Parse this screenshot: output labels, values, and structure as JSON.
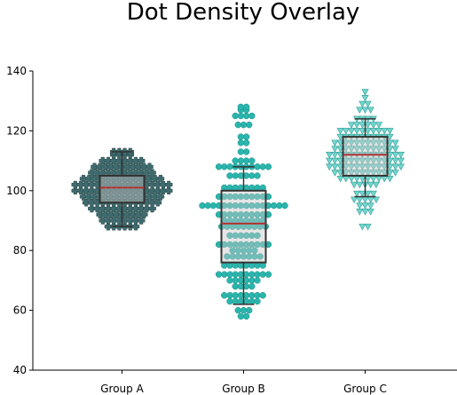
{
  "chart_data": {
    "type": "box",
    "title": "Dot Density Overlay",
    "xlabel": "",
    "ylabel": "",
    "ylim": [
      40,
      140
    ],
    "yticks": [
      40,
      60,
      80,
      100,
      120,
      140
    ],
    "categories": [
      "Group A",
      "Group B",
      "Group C"
    ],
    "grid": false,
    "legend": "none",
    "series": [
      {
        "category": "Group A",
        "marker": "plus",
        "color": "#3f6b6e",
        "box": {
          "q1": 96,
          "median": 101,
          "q3": 105,
          "whisker_low": 88,
          "whisker_high": 113
        },
        "levels": [
          {
            "y": 88,
            "n": 6
          },
          {
            "y": 90,
            "n": 8
          },
          {
            "y": 92,
            "n": 9
          },
          {
            "y": 94,
            "n": 12
          },
          {
            "y": 96,
            "n": 14
          },
          {
            "y": 98,
            "n": 15
          },
          {
            "y": 100,
            "n": 18
          },
          {
            "y": 102,
            "n": 18
          },
          {
            "y": 104,
            "n": 15
          },
          {
            "y": 106,
            "n": 12
          },
          {
            "y": 108,
            "n": 11
          },
          {
            "y": 110,
            "n": 8
          },
          {
            "y": 112,
            "n": 4
          },
          {
            "y": 113,
            "n": 4
          }
        ]
      },
      {
        "category": "Group B",
        "marker": "octagon",
        "color": "#2ab5ad",
        "box": {
          "q1": 76,
          "median": 89,
          "q3": 100,
          "whisker_low": 62,
          "whisker_high": 108
        },
        "levels": [
          {
            "y": 58,
            "n": 2
          },
          {
            "y": 60,
            "n": 3
          },
          {
            "y": 63,
            "n": 6
          },
          {
            "y": 65,
            "n": 8
          },
          {
            "y": 68,
            "n": 4
          },
          {
            "y": 70,
            "n": 6
          },
          {
            "y": 72,
            "n": 10
          },
          {
            "y": 75,
            "n": 8
          },
          {
            "y": 78,
            "n": 7
          },
          {
            "y": 80,
            "n": 5
          },
          {
            "y": 82,
            "n": 10
          },
          {
            "y": 85,
            "n": 6
          },
          {
            "y": 88,
            "n": 9
          },
          {
            "y": 90,
            "n": 8
          },
          {
            "y": 92,
            "n": 10
          },
          {
            "y": 95,
            "n": 16
          },
          {
            "y": 98,
            "n": 10
          },
          {
            "y": 101,
            "n": 8
          },
          {
            "y": 105,
            "n": 6
          },
          {
            "y": 108,
            "n": 10
          },
          {
            "y": 110,
            "n": 4
          },
          {
            "y": 113,
            "n": 2
          },
          {
            "y": 116,
            "n": 2
          },
          {
            "y": 118,
            "n": 2
          },
          {
            "y": 122,
            "n": 3
          },
          {
            "y": 125,
            "n": 4
          },
          {
            "y": 127,
            "n": 2
          },
          {
            "y": 128,
            "n": 2
          }
        ]
      },
      {
        "category": "Group C",
        "marker": "triangle-down",
        "color": "#6fd6ce",
        "box": {
          "q1": 105,
          "median": 112,
          "q3": 118,
          "whisker_low": 98,
          "whisker_high": 124
        },
        "levels": [
          {
            "y": 88,
            "n": 2
          },
          {
            "y": 93,
            "n": 3
          },
          {
            "y": 95,
            "n": 3
          },
          {
            "y": 97,
            "n": 5
          },
          {
            "y": 99,
            "n": 4
          },
          {
            "y": 102,
            "n": 5
          },
          {
            "y": 104,
            "n": 10
          },
          {
            "y": 106,
            "n": 12
          },
          {
            "y": 108,
            "n": 14
          },
          {
            "y": 110,
            "n": 14
          },
          {
            "y": 112,
            "n": 14
          },
          {
            "y": 114,
            "n": 12
          },
          {
            "y": 116,
            "n": 12
          },
          {
            "y": 118,
            "n": 10
          },
          {
            "y": 120,
            "n": 10
          },
          {
            "y": 122,
            "n": 6
          },
          {
            "y": 124,
            "n": 4
          },
          {
            "y": 127,
            "n": 3
          },
          {
            "y": 129,
            "n": 2
          },
          {
            "y": 131,
            "n": 1
          },
          {
            "y": 133,
            "n": 1
          }
        ]
      }
    ]
  }
}
